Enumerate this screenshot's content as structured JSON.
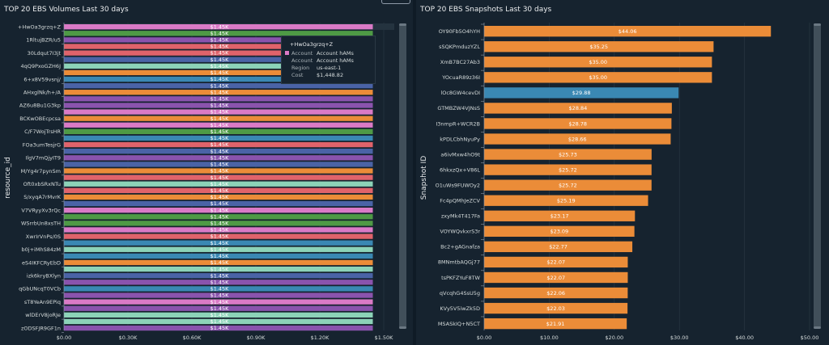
{
  "chart_data": [
    {
      "type": "bar",
      "orientation": "horizontal",
      "title": "TOP 20 EBS Volumes Last 30 days",
      "xlabel": "",
      "ylabel": "resource_id",
      "xlim": [
        0,
        1500
      ],
      "x_ticks": [
        "$0.00",
        "$0.30K",
        "$0.60K",
        "$0.90K",
        "$1.20K",
        "$1.50K"
      ],
      "x_tick_values": [
        0,
        300,
        600,
        900,
        1200,
        1500
      ],
      "categories": [
        "+HwOa3grzq+Z",
        "1RltujBZR/u5",
        "30Ldqut7I3jt",
        "4qQ9PxoGZH6J",
        "6+x8V59vsnj/",
        "AHxglNk/h+/A",
        "AZ6u8Bu1G3kp",
        "BCKwOBEcpcsa",
        "C/F7WojTrsHR",
        "FOa3umTesjrG",
        "IlgV7mQjyIT9",
        "M/Yg4r7pynSm",
        "Oft0xbSRxNTu",
        "S/xyqA7rMvrK",
        "V7VRyyXv3rQc",
        "WSrrbUn8xsTH",
        "XwrIrVnPs/0S",
        "b0j+iMhS84zM",
        "eS4IKFCRyEbD",
        "izk6kryBXlyn",
        "qGbUNcqT0VCb",
        "sT8YeAn9EPiq",
        "wlDErV8joRJe",
        "zODSFJR9GF1n"
      ],
      "label_every": 2,
      "bar_count": 47,
      "bar_value": 1448.82,
      "bar_value_label": "$1.45K",
      "bar_colors": [
        "pink",
        "green",
        "purple",
        "red",
        "red",
        "blue",
        "teal",
        "orange",
        "steel",
        "blue",
        "orange",
        "purple",
        "purple",
        "pink",
        "orange",
        "pink",
        "green",
        "steel",
        "red",
        "blue",
        "purple",
        "blue",
        "orange",
        "red",
        "teal",
        "red",
        "orange",
        "blue",
        "pink",
        "green",
        "green",
        "pink",
        "red",
        "steel",
        "teal",
        "steel",
        "orange",
        "teal",
        "blue",
        "purple",
        "steel",
        "purple",
        "pink",
        "purple",
        "teal",
        "teal",
        "purple"
      ],
      "grid": true,
      "legend": "none"
    },
    {
      "type": "bar",
      "orientation": "horizontal",
      "title": "TOP 20 EBS Snapshots Last 30 days",
      "xlabel": "",
      "ylabel": "Snapshot ID",
      "xlim": [
        0,
        50
      ],
      "x_ticks": [
        "$0.00",
        "$10.00",
        "$20.00",
        "$30.00",
        "$40.00",
        "$50.00"
      ],
      "x_tick_values": [
        0,
        10,
        20,
        30,
        40,
        50
      ],
      "categories": [
        "OY90Fb5O4hYH",
        "sSQKPmduzYZL",
        "XmB7BC27Ab3",
        "YOcuaR89z36I",
        "lOc8GW4cevDI",
        "GTMBZW4VJNsS",
        "I3nmpR+WCR2B",
        "kPDLCbhNyuPy",
        "a6ivMxw4hO9t",
        "6hkxzQx+V86L",
        "O1uWs9FUWOy2",
        "Fc4pQMhJeZCV",
        "zxyMk4T417Fa",
        "VOYWQvkxrS3r",
        "Bc2+gAGnafza",
        "8MNmtbAQGj77",
        "tsPKFZYuF8TW",
        "qVcqhG4SsU5g",
        "KVy5V5iwZk5D",
        "MSASkIQ+N5CT"
      ],
      "values": [
        44.06,
        35.25,
        35.0,
        35.0,
        29.88,
        28.84,
        28.78,
        28.66,
        25.73,
        25.72,
        25.72,
        25.19,
        23.17,
        23.09,
        22.77,
        22.07,
        22.07,
        22.06,
        22.03,
        21.91
      ],
      "value_labels": [
        "$44.06",
        "$35.25",
        "$35.00",
        "$35.00",
        "$29.88",
        "$28.84",
        "$28.78",
        "$28.66",
        "$25.73",
        "$25.72",
        "$25.72",
        "$25.19",
        "$23.17",
        "$23.09",
        "$22.77",
        "$22.07",
        "$22.07",
        "$22.06",
        "$22.03",
        "$21.91"
      ],
      "highlighted_index": 4,
      "grid": true,
      "legend": "none"
    }
  ],
  "colors": {
    "pink": "#da7ac6",
    "green": "#4e9a45",
    "purple": "#8a53ad",
    "red": "#e0636b",
    "blue": "#4a63a6",
    "teal": "#8cd3b8",
    "orange": "#eb8c38",
    "steel": "#3a88b3",
    "snapshot_bar": "#eb8c38",
    "snapshot_highlight": "#3a88b3",
    "gridline": "#2a3945",
    "scrollbar": "#414f5a"
  },
  "tooltip": {
    "header": "+HwOa3grzq+Z",
    "swatch_color": "pink",
    "rows": [
      {
        "key": "Account",
        "value": "Account hAMs"
      },
      {
        "key": "Account",
        "value": "Account hAMs"
      },
      {
        "key": "Region",
        "value": "us-east-1"
      },
      {
        "key": "Cost",
        "value": "$1,448.82"
      }
    ]
  }
}
